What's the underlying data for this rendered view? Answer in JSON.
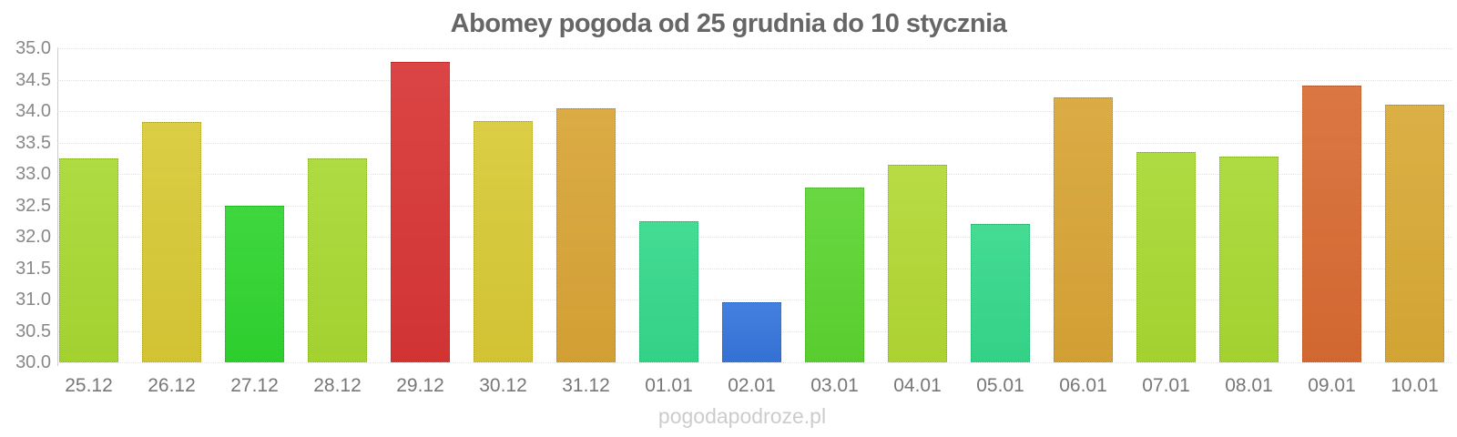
{
  "title": "Abomey pogoda od 25 grudnia do 10 stycznia",
  "watermark": "pogodapodroze.pl",
  "palette": {
    "background": "#ffffff",
    "title_color": "#666666",
    "axis_line": "#cccccc",
    "gridline": "#e4e4e4",
    "y_tick_color": "#888888",
    "x_tick_color": "#777777",
    "watermark_color": "#cccccc"
  },
  "chart_data": {
    "type": "bar",
    "title": "Abomey pogoda od 25 grudnia do 10 stycznia",
    "xlabel": "",
    "ylabel": "",
    "ylim": [
      30.0,
      35.0
    ],
    "ytick_step": 0.5,
    "yticks": [
      "35.0",
      "34.5",
      "34.0",
      "33.5",
      "33.0",
      "32.5",
      "32.0",
      "31.5",
      "31.0",
      "30.5",
      "30.0"
    ],
    "grid": "horizontal-dotted",
    "legend": "none",
    "categories": [
      "25.12",
      "26.12",
      "27.12",
      "28.12",
      "29.12",
      "30.12",
      "31.12",
      "01.01",
      "02.01",
      "03.01",
      "04.01",
      "05.01",
      "06.01",
      "07.01",
      "08.01",
      "09.01",
      "10.01"
    ],
    "values": [
      33.25,
      33.82,
      32.5,
      33.24,
      34.78,
      33.84,
      34.05,
      32.25,
      30.95,
      32.78,
      33.15,
      32.2,
      34.22,
      33.35,
      33.27,
      34.4,
      34.1
    ],
    "bar_colors": [
      "#a8d832",
      "#d8c935",
      "#2fd42f",
      "#a8d832",
      "#d83535",
      "#d8c935",
      "#d8a435",
      "#35d88a",
      "#3575db",
      "#5cd431",
      "#b2d834",
      "#35d88a",
      "#d8a435",
      "#a8d832",
      "#a8d832",
      "#d86b33",
      "#d8a935"
    ]
  }
}
